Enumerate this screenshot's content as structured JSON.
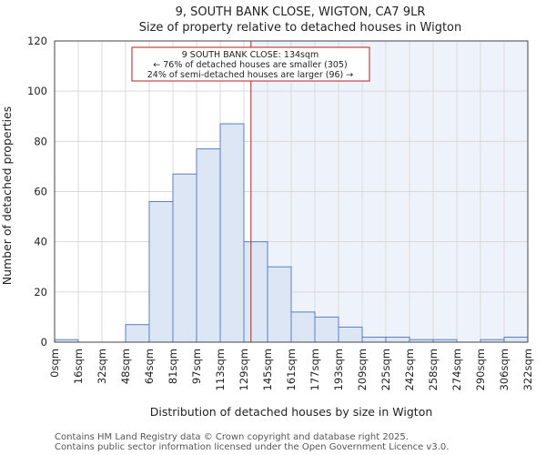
{
  "chart_data": {
    "type": "histogram",
    "title": "9, SOUTH BANK CLOSE, WIGTON, CA7 9LR",
    "subtitle": "Size of property relative to detached houses in Wigton",
    "xlabel": "Distribution of detached houses by size in Wigton",
    "ylabel": "Number of detached properties",
    "ylim": [
      0,
      120
    ],
    "yticks": [
      0,
      20,
      40,
      60,
      80,
      100,
      120
    ],
    "categories": [
      "0sqm",
      "16sqm",
      "32sqm",
      "48sqm",
      "64sqm",
      "81sqm",
      "97sqm",
      "113sqm",
      "129sqm",
      "145sqm",
      "161sqm",
      "177sqm",
      "193sqm",
      "209sqm",
      "225sqm",
      "242sqm",
      "258sqm",
      "274sqm",
      "290sqm",
      "306sqm",
      "322sqm"
    ],
    "values": [
      1,
      0,
      0,
      7,
      56,
      67,
      77,
      87,
      40,
      30,
      12,
      10,
      6,
      2,
      2,
      1,
      1,
      0,
      1,
      2
    ],
    "marker": {
      "value_sqm": 134,
      "bin_position": 8.3,
      "lines": [
        "9 SOUTH BANK CLOSE: 134sqm",
        "← 76% of detached houses are smaller (305)",
        "24% of semi-detached houses are larger (96) →"
      ]
    },
    "grid": true,
    "colors": {
      "bar_fill": "#dce6f5",
      "bar_stroke": "#5b7fc4",
      "marker_line": "#b22222",
      "highlight_region": "#eef2fb",
      "grid": "#d9d9d9"
    }
  },
  "footer": {
    "line1": "Contains HM Land Registry data © Crown copyright and database right 2025.",
    "line2": "Contains public sector information licensed under the Open Government Licence v3.0."
  }
}
